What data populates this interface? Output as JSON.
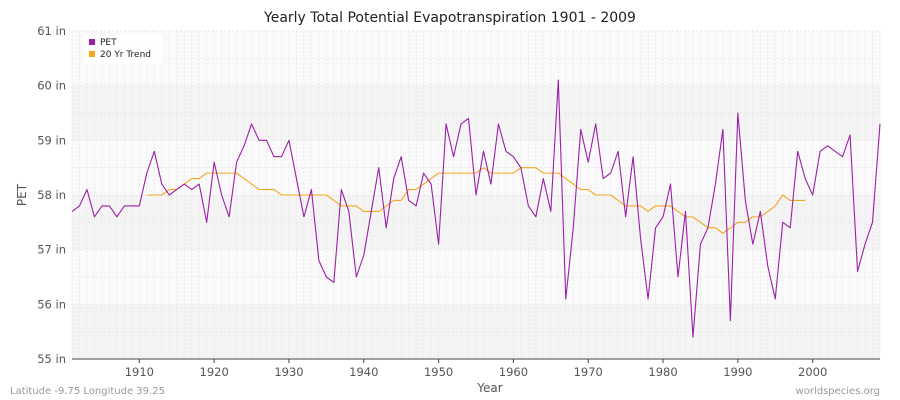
{
  "chart_data": {
    "type": "line",
    "title": "Yearly Total Potential Evapotranspiration 1901 - 2009",
    "xlabel": "Year",
    "ylabel": "PET",
    "xlim": [
      1901,
      2009
    ],
    "ylim": [
      55,
      61
    ],
    "x_ticks": [
      1910,
      1920,
      1930,
      1940,
      1950,
      1960,
      1970,
      1980,
      1990,
      2000
    ],
    "y_ticks": [
      55,
      56,
      57,
      58,
      59,
      60,
      61
    ],
    "y_tick_labels": [
      "55 in",
      "56 in",
      "57 in",
      "58 in",
      "59 in",
      "60 in",
      "61 in"
    ],
    "grid": true,
    "legend_position": "top-left",
    "series": [
      {
        "name": "PET",
        "color": "#9b1fa8",
        "x": [
          1901,
          1902,
          1903,
          1904,
          1905,
          1906,
          1907,
          1908,
          1909,
          1910,
          1911,
          1912,
          1913,
          1914,
          1915,
          1916,
          1917,
          1918,
          1919,
          1920,
          1921,
          1922,
          1923,
          1924,
          1925,
          1926,
          1927,
          1928,
          1929,
          1930,
          1931,
          1932,
          1933,
          1934,
          1935,
          1936,
          1937,
          1938,
          1939,
          1940,
          1941,
          1942,
          1943,
          1944,
          1945,
          1946,
          1947,
          1948,
          1949,
          1950,
          1951,
          1952,
          1953,
          1954,
          1955,
          1956,
          1957,
          1958,
          1959,
          1960,
          1961,
          1962,
          1963,
          1964,
          1965,
          1966,
          1967,
          1968,
          1969,
          1970,
          1971,
          1972,
          1973,
          1974,
          1975,
          1976,
          1977,
          1978,
          1979,
          1980,
          1981,
          1982,
          1983,
          1984,
          1985,
          1986,
          1987,
          1988,
          1989,
          1990,
          1991,
          1992,
          1993,
          1994,
          1995,
          1996,
          1997,
          1998,
          1999,
          2000,
          2001,
          2002,
          2003,
          2004,
          2005,
          2006,
          2007,
          2008,
          2009
        ],
        "values": [
          57.7,
          57.8,
          58.1,
          57.6,
          57.8,
          57.8,
          57.6,
          57.8,
          57.8,
          57.8,
          58.4,
          58.8,
          58.2,
          58.0,
          58.1,
          58.2,
          58.1,
          58.2,
          57.5,
          58.6,
          58.0,
          57.6,
          58.6,
          58.9,
          59.3,
          59.0,
          59.0,
          58.7,
          58.7,
          59.0,
          58.3,
          57.6,
          58.1,
          56.8,
          56.5,
          56.4,
          58.1,
          57.7,
          56.5,
          56.9,
          57.7,
          58.5,
          57.4,
          58.3,
          58.7,
          57.9,
          57.8,
          58.4,
          58.2,
          57.1,
          59.3,
          58.7,
          59.3,
          59.4,
          58.0,
          58.8,
          58.2,
          59.3,
          58.8,
          58.7,
          58.5,
          57.8,
          57.6,
          58.3,
          57.7,
          60.1,
          56.1,
          57.4,
          59.2,
          58.6,
          59.3,
          58.3,
          58.4,
          58.8,
          57.6,
          58.7,
          57.2,
          56.1,
          57.4,
          57.6,
          58.2,
          56.5,
          57.7,
          55.4,
          57.1,
          57.4,
          58.2,
          59.2,
          55.7,
          59.5,
          57.9,
          57.1,
          57.7,
          56.7,
          56.1,
          57.5,
          57.4,
          58.8,
          58.3,
          58.0,
          58.8,
          58.9,
          58.8,
          58.7,
          59.1,
          56.6,
          57.1,
          57.5,
          59.3
        ]
      },
      {
        "name": "20 Yr Trend",
        "color": "#f5a623",
        "x": [
          1911,
          1912,
          1913,
          1914,
          1915,
          1916,
          1917,
          1918,
          1919,
          1920,
          1921,
          1922,
          1923,
          1924,
          1925,
          1926,
          1927,
          1928,
          1929,
          1930,
          1931,
          1932,
          1933,
          1934,
          1935,
          1936,
          1937,
          1938,
          1939,
          1940,
          1941,
          1942,
          1943,
          1944,
          1945,
          1946,
          1947,
          1948,
          1949,
          1950,
          1951,
          1952,
          1953,
          1954,
          1955,
          1956,
          1957,
          1958,
          1959,
          1960,
          1961,
          1962,
          1963,
          1964,
          1965,
          1966,
          1967,
          1968,
          1969,
          1970,
          1971,
          1972,
          1973,
          1974,
          1975,
          1976,
          1977,
          1978,
          1979,
          1980,
          1981,
          1982,
          1983,
          1984,
          1985,
          1986,
          1987,
          1988,
          1989,
          1990,
          1991,
          1992,
          1993,
          1994,
          1995,
          1996,
          1997,
          1998,
          1999
        ],
        "values": [
          58.0,
          58.0,
          58.0,
          58.1,
          58.1,
          58.2,
          58.3,
          58.3,
          58.4,
          58.4,
          58.4,
          58.4,
          58.4,
          58.3,
          58.2,
          58.1,
          58.1,
          58.1,
          58.0,
          58.0,
          58.0,
          58.0,
          58.0,
          58.0,
          58.0,
          57.9,
          57.8,
          57.8,
          57.8,
          57.7,
          57.7,
          57.7,
          57.8,
          57.9,
          57.9,
          58.1,
          58.1,
          58.2,
          58.3,
          58.4,
          58.4,
          58.4,
          58.4,
          58.4,
          58.4,
          58.5,
          58.4,
          58.4,
          58.4,
          58.4,
          58.5,
          58.5,
          58.5,
          58.4,
          58.4,
          58.4,
          58.3,
          58.2,
          58.1,
          58.1,
          58.0,
          58.0,
          58.0,
          57.9,
          57.8,
          57.8,
          57.8,
          57.7,
          57.8,
          57.8,
          57.8,
          57.7,
          57.6,
          57.6,
          57.5,
          57.4,
          57.4,
          57.3,
          57.4,
          57.5,
          57.5,
          57.6,
          57.6,
          57.7,
          57.8,
          58.0,
          57.9,
          57.9,
          57.9
        ]
      }
    ]
  },
  "footer": {
    "left": "Latitude -9.75 Longitude 39.25",
    "right": "worldspecies.org"
  }
}
